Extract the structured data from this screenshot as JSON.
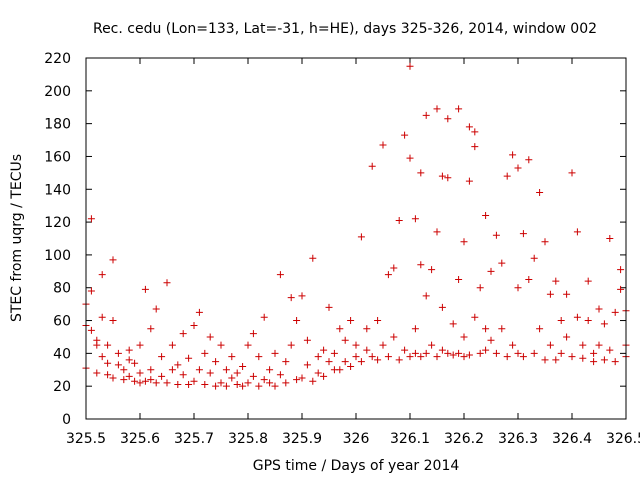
{
  "chart_data": {
    "type": "scatter",
    "title": "Rec. cedu (Lon=133, Lat=-31, h=HE), days 325-326, 2014, window 002",
    "xlabel": "GPS time / Days of year 2014",
    "ylabel": "STEC from uqrg / TECUs",
    "xlim": [
      325.5,
      326.5
    ],
    "ylim": [
      0,
      220
    ],
    "x_ticks": [
      325.5,
      325.6,
      325.7,
      325.8,
      325.9,
      326,
      326.1,
      326.2,
      326.3,
      326.4,
      326.5
    ],
    "x_tick_labels": [
      "325.5",
      "325.6",
      "325.7",
      "325.8",
      "325.9",
      "326",
      "326.1",
      "326.2",
      "326.3",
      "326.4",
      "326.5"
    ],
    "y_ticks": [
      0,
      20,
      40,
      60,
      80,
      100,
      120,
      140,
      160,
      180,
      200,
      220
    ],
    "y_tick_labels": [
      "0",
      "20",
      "40",
      "60",
      "80",
      "100",
      "120",
      "140",
      "160",
      "180",
      "200",
      "220"
    ],
    "marker": "+",
    "marker_color": "#cc0000",
    "series": [
      {
        "name": "STEC",
        "points": [
          [
            325.5,
            31
          ],
          [
            325.5,
            57
          ],
          [
            325.5,
            70
          ],
          [
            325.51,
            54
          ],
          [
            325.51,
            122
          ],
          [
            325.51,
            78
          ],
          [
            325.52,
            28
          ],
          [
            325.52,
            48
          ],
          [
            325.52,
            45
          ],
          [
            325.53,
            38
          ],
          [
            325.53,
            62
          ],
          [
            325.53,
            88
          ],
          [
            325.54,
            27
          ],
          [
            325.54,
            34
          ],
          [
            325.54,
            45
          ],
          [
            325.55,
            25
          ],
          [
            325.55,
            60
          ],
          [
            325.55,
            97
          ],
          [
            325.56,
            40
          ],
          [
            325.56,
            33
          ],
          [
            325.57,
            24
          ],
          [
            325.57,
            30
          ],
          [
            325.58,
            26
          ],
          [
            325.58,
            42
          ],
          [
            325.58,
            36
          ],
          [
            325.59,
            23
          ],
          [
            325.59,
            34
          ],
          [
            325.6,
            22
          ],
          [
            325.6,
            28
          ],
          [
            325.6,
            45
          ],
          [
            325.61,
            79
          ],
          [
            325.61,
            23
          ],
          [
            325.62,
            55
          ],
          [
            325.62,
            30
          ],
          [
            325.62,
            24
          ],
          [
            325.63,
            67
          ],
          [
            325.63,
            22
          ],
          [
            325.64,
            26
          ],
          [
            325.64,
            38
          ],
          [
            325.65,
            83
          ],
          [
            325.65,
            22
          ],
          [
            325.66,
            30
          ],
          [
            325.66,
            45
          ],
          [
            325.67,
            21
          ],
          [
            325.67,
            33
          ],
          [
            325.68,
            27
          ],
          [
            325.68,
            52
          ],
          [
            325.69,
            21
          ],
          [
            325.69,
            37
          ],
          [
            325.7,
            57
          ],
          [
            325.7,
            23
          ],
          [
            325.71,
            65
          ],
          [
            325.71,
            30
          ],
          [
            325.72,
            21
          ],
          [
            325.72,
            40
          ],
          [
            325.73,
            28
          ],
          [
            325.73,
            50
          ],
          [
            325.74,
            20
          ],
          [
            325.74,
            35
          ],
          [
            325.75,
            22
          ],
          [
            325.75,
            45
          ],
          [
            325.76,
            20
          ],
          [
            325.76,
            30
          ],
          [
            325.77,
            25
          ],
          [
            325.77,
            38
          ],
          [
            325.78,
            21
          ],
          [
            325.78,
            28
          ],
          [
            325.79,
            32
          ],
          [
            325.79,
            20
          ],
          [
            325.8,
            45
          ],
          [
            325.8,
            22
          ],
          [
            325.81,
            26
          ],
          [
            325.81,
            52
          ],
          [
            325.82,
            20
          ],
          [
            325.82,
            38
          ],
          [
            325.83,
            24
          ],
          [
            325.83,
            62
          ],
          [
            325.84,
            22
          ],
          [
            325.84,
            30
          ],
          [
            325.85,
            40
          ],
          [
            325.85,
            20
          ],
          [
            325.86,
            88
          ],
          [
            325.86,
            27
          ],
          [
            325.87,
            35
          ],
          [
            325.87,
            22
          ],
          [
            325.88,
            74
          ],
          [
            325.88,
            45
          ],
          [
            325.89,
            24
          ],
          [
            325.89,
            60
          ],
          [
            325.9,
            75
          ],
          [
            325.9,
            25
          ],
          [
            325.91,
            33
          ],
          [
            325.91,
            48
          ],
          [
            325.92,
            98
          ],
          [
            325.92,
            23
          ],
          [
            325.93,
            38
          ],
          [
            325.93,
            28
          ],
          [
            325.94,
            42
          ],
          [
            325.94,
            26
          ],
          [
            325.95,
            35
          ],
          [
            325.95,
            68
          ],
          [
            325.96,
            30
          ],
          [
            325.96,
            40
          ],
          [
            325.97,
            55
          ],
          [
            325.97,
            30
          ],
          [
            325.98,
            35
          ],
          [
            325.98,
            48
          ],
          [
            325.99,
            60
          ],
          [
            325.99,
            32
          ],
          [
            326.0,
            45
          ],
          [
            326.0,
            38
          ],
          [
            326.01,
            111
          ],
          [
            326.01,
            35
          ],
          [
            326.02,
            55
          ],
          [
            326.02,
            42
          ],
          [
            326.03,
            154
          ],
          [
            326.03,
            38
          ],
          [
            326.04,
            60
          ],
          [
            326.04,
            36
          ],
          [
            326.05,
            167
          ],
          [
            326.05,
            45
          ],
          [
            326.06,
            88
          ],
          [
            326.06,
            38
          ],
          [
            326.07,
            92
          ],
          [
            326.07,
            50
          ],
          [
            326.08,
            121
          ],
          [
            326.08,
            36
          ],
          [
            326.09,
            173
          ],
          [
            326.09,
            42
          ],
          [
            326.1,
            215
          ],
          [
            326.1,
            159
          ],
          [
            326.1,
            38
          ],
          [
            326.11,
            122
          ],
          [
            326.11,
            55
          ],
          [
            326.11,
            40
          ],
          [
            326.12,
            150
          ],
          [
            326.12,
            94
          ],
          [
            326.12,
            38
          ],
          [
            326.13,
            185
          ],
          [
            326.13,
            75
          ],
          [
            326.13,
            40
          ],
          [
            326.14,
            91
          ],
          [
            326.14,
            45
          ],
          [
            326.15,
            189
          ],
          [
            326.15,
            114
          ],
          [
            326.15,
            38
          ],
          [
            326.16,
            148
          ],
          [
            326.16,
            68
          ],
          [
            326.16,
            42
          ],
          [
            326.17,
            183
          ],
          [
            326.17,
            147
          ],
          [
            326.17,
            40
          ],
          [
            326.18,
            58
          ],
          [
            326.18,
            39
          ],
          [
            326.19,
            189
          ],
          [
            326.19,
            85
          ],
          [
            326.19,
            40
          ],
          [
            326.2,
            108
          ],
          [
            326.2,
            50
          ],
          [
            326.2,
            38
          ],
          [
            326.21,
            145
          ],
          [
            326.21,
            178
          ],
          [
            326.21,
            39
          ],
          [
            326.22,
            175
          ],
          [
            326.22,
            166
          ],
          [
            326.22,
            62
          ],
          [
            326.23,
            80
          ],
          [
            326.23,
            40
          ],
          [
            326.24,
            124
          ],
          [
            326.24,
            55
          ],
          [
            326.24,
            42
          ],
          [
            326.25,
            90
          ],
          [
            326.25,
            48
          ],
          [
            326.26,
            112
          ],
          [
            326.26,
            40
          ],
          [
            326.27,
            95
          ],
          [
            326.27,
            55
          ],
          [
            326.28,
            148
          ],
          [
            326.28,
            38
          ],
          [
            326.29,
            161
          ],
          [
            326.29,
            45
          ],
          [
            326.3,
            153
          ],
          [
            326.3,
            80
          ],
          [
            326.3,
            40
          ],
          [
            326.31,
            113
          ],
          [
            326.31,
            38
          ],
          [
            326.32,
            158
          ],
          [
            326.32,
            85
          ],
          [
            326.33,
            98
          ],
          [
            326.33,
            40
          ],
          [
            326.34,
            138
          ],
          [
            326.34,
            55
          ],
          [
            326.35,
            108
          ],
          [
            326.35,
            36
          ],
          [
            326.36,
            76
          ],
          [
            326.36,
            45
          ],
          [
            326.37,
            84
          ],
          [
            326.37,
            36
          ],
          [
            326.38,
            60
          ],
          [
            326.38,
            40
          ],
          [
            326.39,
            76
          ],
          [
            326.39,
            50
          ],
          [
            326.4,
            150
          ],
          [
            326.4,
            38
          ],
          [
            326.41,
            114
          ],
          [
            326.41,
            62
          ],
          [
            326.42,
            45
          ],
          [
            326.42,
            37
          ],
          [
            326.43,
            84
          ],
          [
            326.43,
            60
          ],
          [
            326.44,
            40
          ],
          [
            326.44,
            35
          ],
          [
            326.45,
            67
          ],
          [
            326.45,
            45
          ],
          [
            326.46,
            58
          ],
          [
            326.46,
            36
          ],
          [
            326.47,
            110
          ],
          [
            326.47,
            42
          ],
          [
            326.48,
            65
          ],
          [
            326.48,
            35
          ],
          [
            326.49,
            91
          ],
          [
            326.49,
            79
          ],
          [
            326.5,
            66
          ],
          [
            326.5,
            38
          ],
          [
            326.5,
            45
          ]
        ]
      }
    ]
  }
}
